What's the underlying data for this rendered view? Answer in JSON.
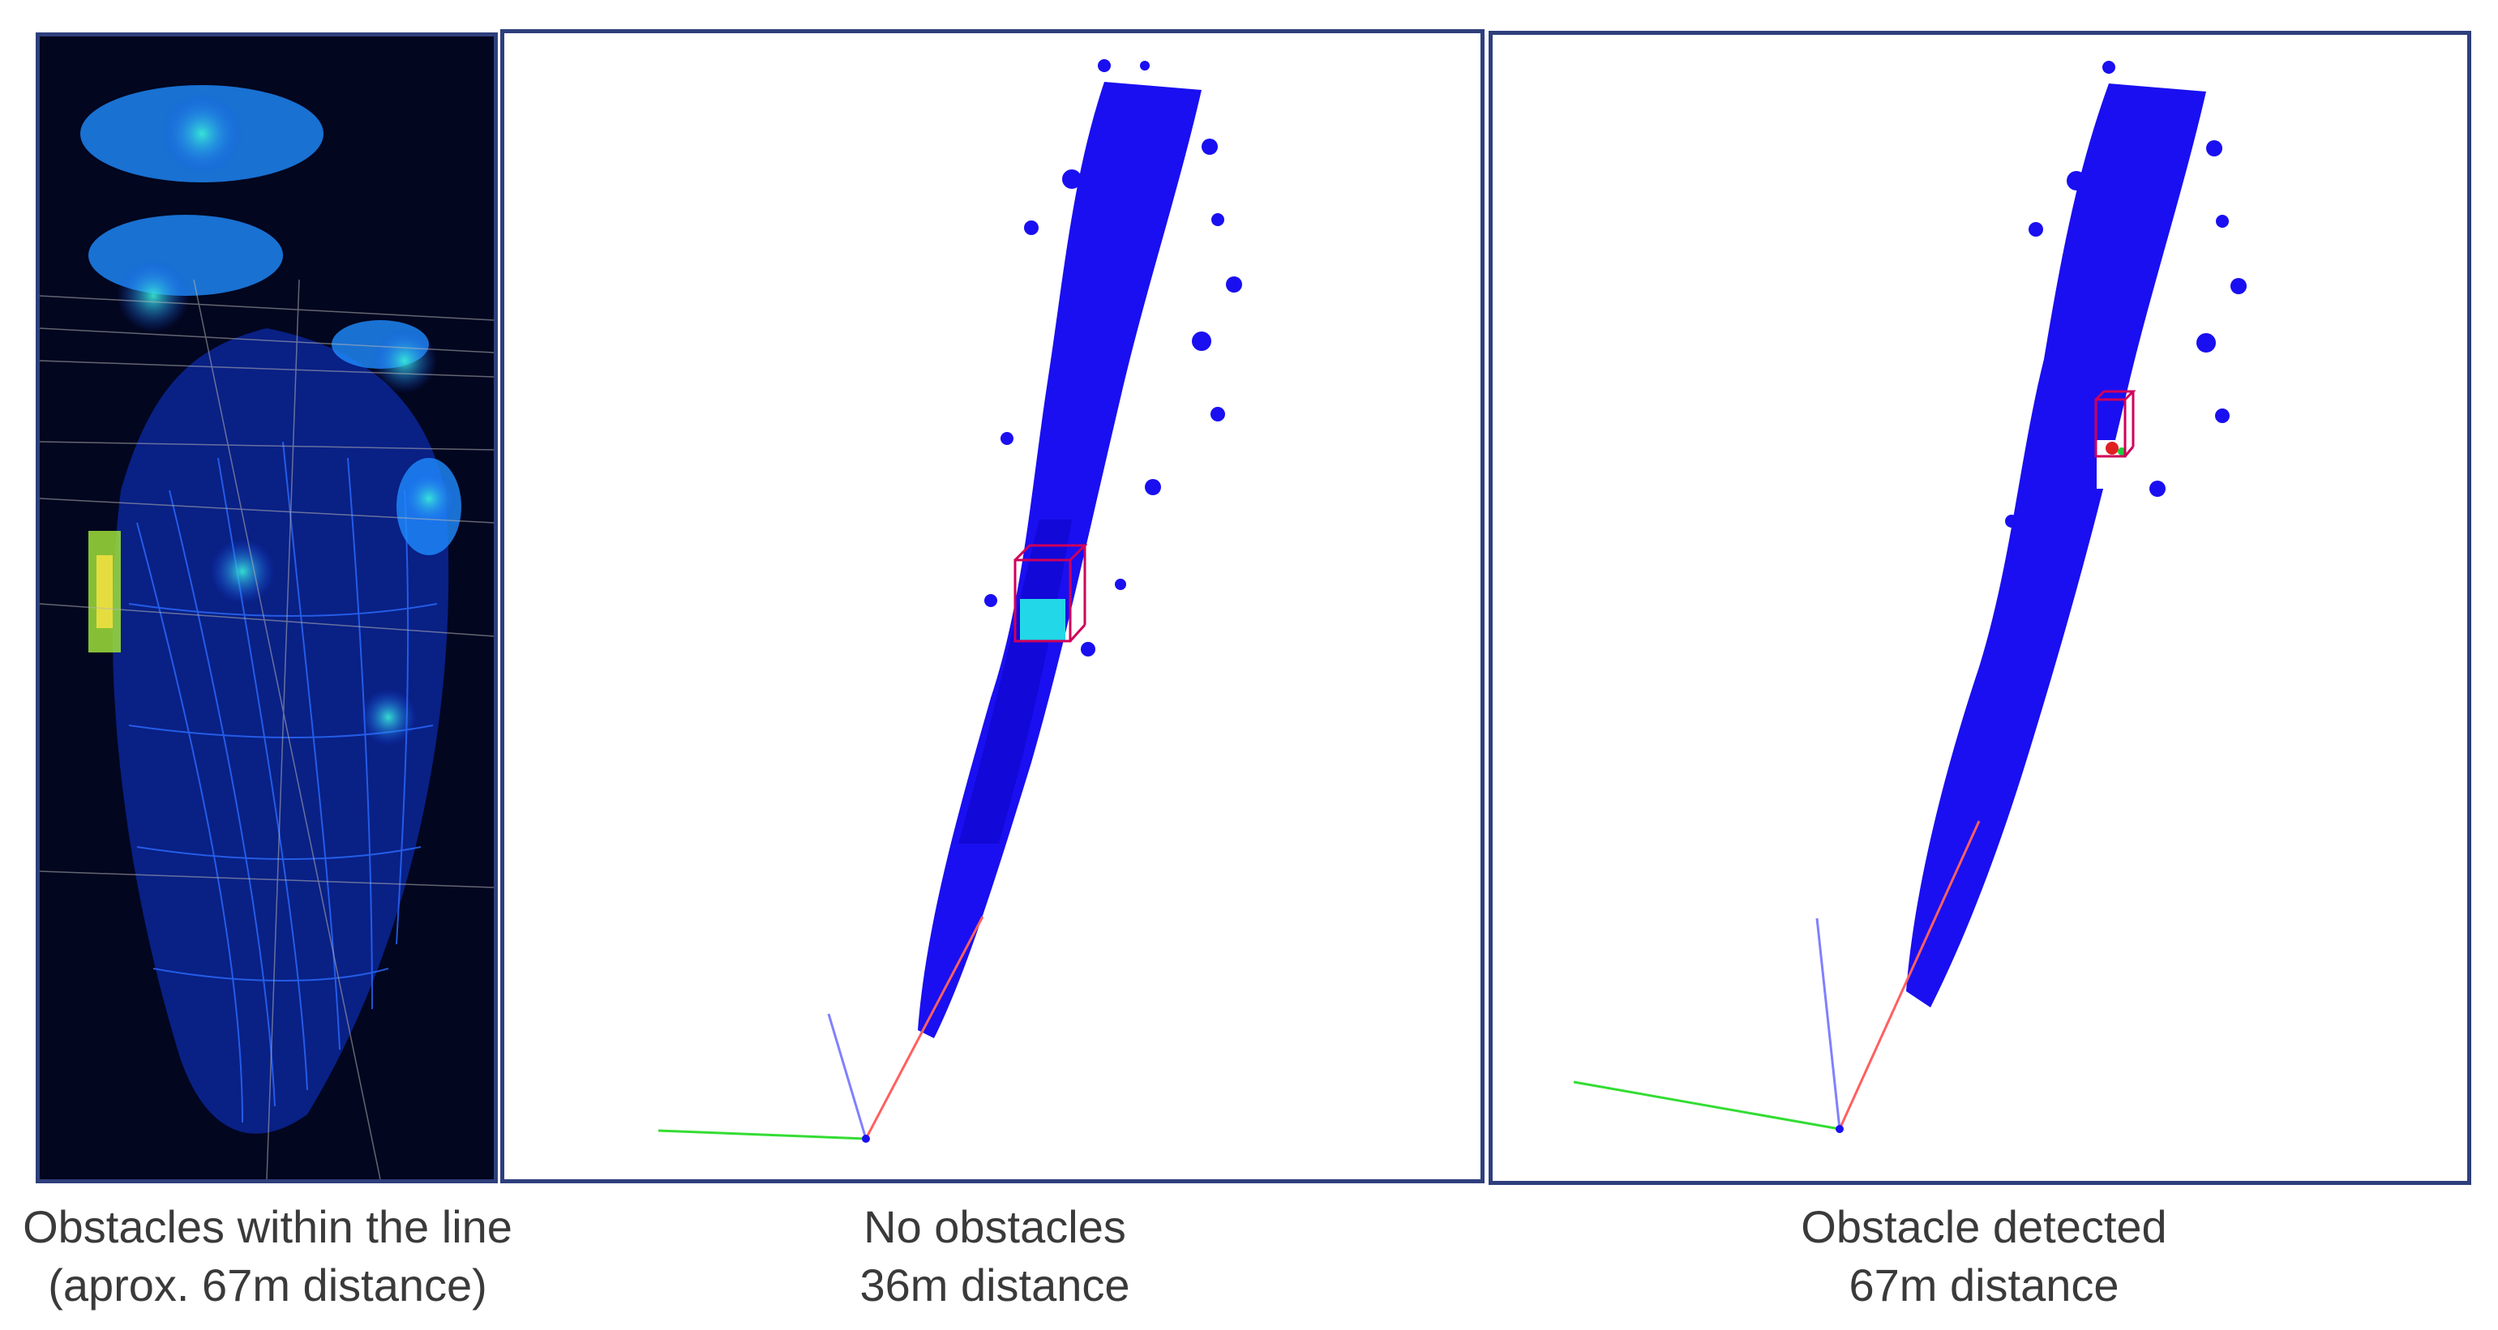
{
  "panels": [
    {
      "caption_line1": "Obstacles within the line",
      "caption_line2": "(aprox. 67m distance)",
      "style": "dark point cloud",
      "background": "#02061f"
    },
    {
      "caption_line1": "No obstacles",
      "caption_line2": "36m distance",
      "style": "blue point cloud",
      "background": "#ffffff"
    },
    {
      "caption_line1": "Obstacle detected",
      "caption_line2": "67m distance",
      "style": "blue point cloud with detection",
      "background": "#ffffff"
    }
  ],
  "colors": {
    "panel_border": "#2e3f7c",
    "point_cloud_blue": "#1a0ff0",
    "detection_box": "#d0005a",
    "highlight_cyan": "#22d8e8",
    "axis_red": "#ff5050",
    "axis_green": "#33dd33",
    "axis_blue": "#8080ff"
  }
}
